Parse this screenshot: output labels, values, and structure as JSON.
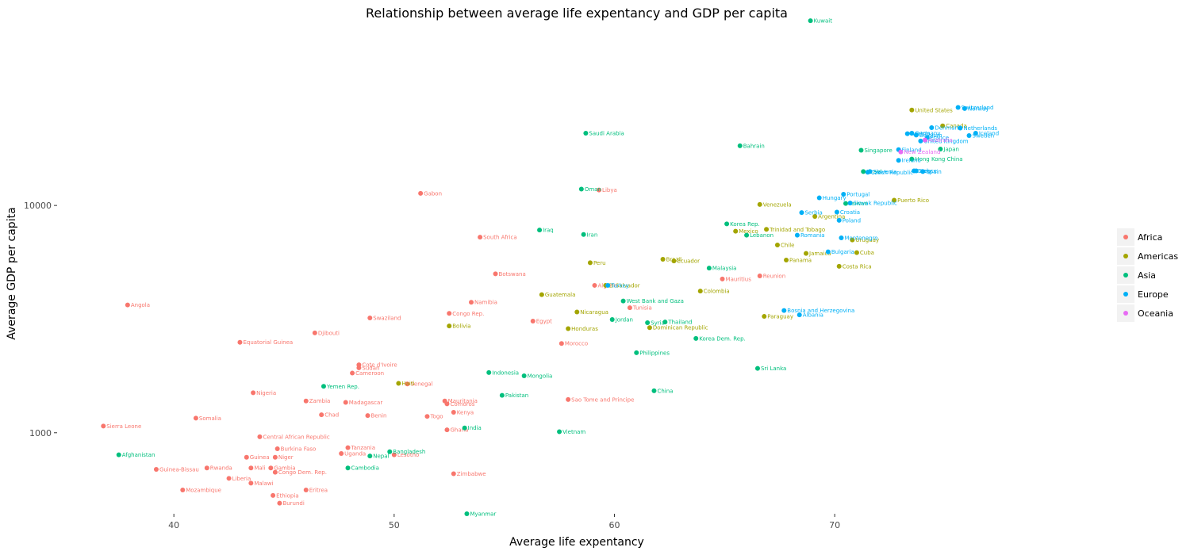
{
  "chart_data": {
    "type": "scatter",
    "title": "Relationship between average life expentancy and GDP per capita",
    "xlabel": "Average life expentancy",
    "ylabel": "Average GDP per capita",
    "xlim": [
      34.7,
      82.6
    ],
    "ylim": [
      440,
      62000
    ],
    "y_scale": "log",
    "x_ticks": [
      40,
      50,
      60,
      70
    ],
    "y_ticks": [
      1000,
      10000
    ],
    "x_tick_labels": [
      "40",
      "50",
      "60",
      "70"
    ],
    "y_tick_labels": [
      "1000",
      "10000"
    ],
    "grid": false,
    "legend_position": "right",
    "series": [
      {
        "name": "Africa",
        "color": "#F8766D",
        "points": [
          {
            "label": "Angola",
            "x": 37.9,
            "y": 3650
          },
          {
            "label": "Sierra Leone",
            "x": 36.8,
            "y": 1070
          },
          {
            "label": "Somalia",
            "x": 41.0,
            "y": 1160
          },
          {
            "label": "Equatorial Guinea",
            "x": 43.0,
            "y": 2500
          },
          {
            "label": "Nigeria",
            "x": 43.6,
            "y": 1500
          },
          {
            "label": "Guinea-Bissau",
            "x": 39.2,
            "y": 690
          },
          {
            "label": "Mozambique",
            "x": 40.4,
            "y": 560
          },
          {
            "label": "Rwanda",
            "x": 41.5,
            "y": 700
          },
          {
            "label": "Liberia",
            "x": 42.5,
            "y": 630
          },
          {
            "label": "Guinea",
            "x": 43.3,
            "y": 780
          },
          {
            "label": "Mali",
            "x": 43.5,
            "y": 700
          },
          {
            "label": "Malawi",
            "x": 43.5,
            "y": 600
          },
          {
            "label": "Central African Republic",
            "x": 43.9,
            "y": 960
          },
          {
            "label": "Burkina Faso",
            "x": 44.7,
            "y": 850
          },
          {
            "label": "Niger",
            "x": 44.6,
            "y": 780
          },
          {
            "label": "Gambia",
            "x": 44.4,
            "y": 700
          },
          {
            "label": "Congo Dem. Rep.",
            "x": 44.6,
            "y": 670
          },
          {
            "label": "Ethiopia",
            "x": 44.5,
            "y": 530
          },
          {
            "label": "Burundi",
            "x": 44.8,
            "y": 490
          },
          {
            "label": "Eritrea",
            "x": 46.0,
            "y": 560
          },
          {
            "label": "Zambia",
            "x": 46.0,
            "y": 1380
          },
          {
            "label": "Djibouti",
            "x": 46.4,
            "y": 2750
          },
          {
            "label": "Chad",
            "x": 46.7,
            "y": 1200
          },
          {
            "label": "Madagascar",
            "x": 47.8,
            "y": 1360
          },
          {
            "label": "Tanzania",
            "x": 47.9,
            "y": 860
          },
          {
            "label": "Uganda",
            "x": 47.6,
            "y": 810
          },
          {
            "label": "Cote d'Ivoire",
            "x": 48.4,
            "y": 1990
          },
          {
            "label": "Sudan",
            "x": 48.4,
            "y": 1930
          },
          {
            "label": "Cameroon",
            "x": 48.1,
            "y": 1830
          },
          {
            "label": "Swaziland",
            "x": 48.9,
            "y": 3200
          },
          {
            "label": "Benin",
            "x": 48.8,
            "y": 1190
          },
          {
            "label": "Lesotho",
            "x": 50.0,
            "y": 800
          },
          {
            "label": "Senegal",
            "x": 50.6,
            "y": 1640
          },
          {
            "label": "Gabon",
            "x": 51.2,
            "y": 11300
          },
          {
            "label": "Togo",
            "x": 51.5,
            "y": 1180
          },
          {
            "label": "Mauritania",
            "x": 52.3,
            "y": 1380
          },
          {
            "label": "Comoros",
            "x": 52.4,
            "y": 1340
          },
          {
            "label": "Ghana",
            "x": 52.4,
            "y": 1030
          },
          {
            "label": "Kenya",
            "x": 52.7,
            "y": 1230
          },
          {
            "label": "Congo Rep.",
            "x": 52.5,
            "y": 3350
          },
          {
            "label": "Zimbabwe",
            "x": 52.7,
            "y": 660
          },
          {
            "label": "Namibia",
            "x": 53.5,
            "y": 3750
          },
          {
            "label": "South Africa",
            "x": 53.9,
            "y": 7250
          },
          {
            "label": "Botswana",
            "x": 54.6,
            "y": 5000
          },
          {
            "label": "Egypt",
            "x": 56.3,
            "y": 3100
          },
          {
            "label": "Morocco",
            "x": 57.6,
            "y": 2470
          },
          {
            "label": "Sao Tome and Principe",
            "x": 57.9,
            "y": 1400
          },
          {
            "label": "Libya",
            "x": 59.3,
            "y": 11700
          },
          {
            "label": "Algeria",
            "x": 59.1,
            "y": 4450
          },
          {
            "label": "Tunisia",
            "x": 60.7,
            "y": 3550
          },
          {
            "label": "Mauritius",
            "x": 64.9,
            "y": 4750
          },
          {
            "label": "Reunion",
            "x": 66.6,
            "y": 4900
          }
        ]
      },
      {
        "name": "Americas",
        "color": "#A3A500",
        "points": [
          {
            "label": "Haiti",
            "x": 50.2,
            "y": 1650
          },
          {
            "label": "Bolivia",
            "x": 52.5,
            "y": 2950
          },
          {
            "label": "Guatemala",
            "x": 56.7,
            "y": 4050
          },
          {
            "label": "Nicaragua",
            "x": 58.3,
            "y": 3400
          },
          {
            "label": "Honduras",
            "x": 57.9,
            "y": 2870
          },
          {
            "label": "Peru",
            "x": 58.9,
            "y": 5600
          },
          {
            "label": "El Salvador",
            "x": 59.6,
            "y": 4450
          },
          {
            "label": "Dominican Republic",
            "x": 61.6,
            "y": 2900
          },
          {
            "label": "Brazil",
            "x": 62.2,
            "y": 5800
          },
          {
            "label": "Ecuador",
            "x": 62.7,
            "y": 5700
          },
          {
            "label": "Colombia",
            "x": 63.9,
            "y": 4200
          },
          {
            "label": "Venezuela",
            "x": 66.6,
            "y": 10100
          },
          {
            "label": "Mexico",
            "x": 65.5,
            "y": 7700
          },
          {
            "label": "Trinidad and Tobago",
            "x": 66.9,
            "y": 7850
          },
          {
            "label": "Paraguay",
            "x": 66.8,
            "y": 3250
          },
          {
            "label": "Chile",
            "x": 67.4,
            "y": 6700
          },
          {
            "label": "Panama",
            "x": 67.8,
            "y": 5750
          },
          {
            "label": "Jamaica",
            "x": 68.7,
            "y": 6150
          },
          {
            "label": "Argentina",
            "x": 69.1,
            "y": 8950
          },
          {
            "label": "Uruguay",
            "x": 70.8,
            "y": 7050
          },
          {
            "label": "Costa Rica",
            "x": 70.2,
            "y": 5400
          },
          {
            "label": "Cuba",
            "x": 71.0,
            "y": 6200
          },
          {
            "label": "Puerto Rico",
            "x": 72.7,
            "y": 10550
          },
          {
            "label": "United States",
            "x": 73.5,
            "y": 26300
          },
          {
            "label": "Canada",
            "x": 74.9,
            "y": 22400
          }
        ]
      },
      {
        "name": "Asia",
        "color": "#00BF7D",
        "points": [
          {
            "label": "Afghanistan",
            "x": 37.5,
            "y": 800
          },
          {
            "label": "Yemen Rep.",
            "x": 46.8,
            "y": 1600
          },
          {
            "label": "Cambodia",
            "x": 47.9,
            "y": 700
          },
          {
            "label": "Nepal",
            "x": 48.9,
            "y": 790
          },
          {
            "label": "Bangladesh",
            "x": 49.8,
            "y": 825
          },
          {
            "label": "Myanmar",
            "x": 53.3,
            "y": 440
          },
          {
            "label": "India",
            "x": 53.2,
            "y": 1050
          },
          {
            "label": "Indonesia",
            "x": 54.3,
            "y": 1840
          },
          {
            "label": "Pakistan",
            "x": 54.9,
            "y": 1460
          },
          {
            "label": "Mongolia",
            "x": 55.9,
            "y": 1780
          },
          {
            "label": "Vietnam",
            "x": 57.5,
            "y": 1010
          },
          {
            "label": "Iraq",
            "x": 56.6,
            "y": 7800
          },
          {
            "label": "Iran",
            "x": 58.6,
            "y": 7450
          },
          {
            "label": "Oman",
            "x": 58.5,
            "y": 11800
          },
          {
            "label": "Saudi Arabia",
            "x": 58.7,
            "y": 20800
          },
          {
            "label": "Jordan",
            "x": 59.9,
            "y": 3150
          },
          {
            "label": "West Bank and Gaza",
            "x": 60.4,
            "y": 3800
          },
          {
            "label": "Philippines",
            "x": 61.0,
            "y": 2250
          },
          {
            "label": "Syria",
            "x": 61.5,
            "y": 3050
          },
          {
            "label": "China",
            "x": 61.8,
            "y": 1530
          },
          {
            "label": "Thailand",
            "x": 62.3,
            "y": 3070
          },
          {
            "label": "Korea Dem. Rep.",
            "x": 63.7,
            "y": 2600
          },
          {
            "label": "Malaysia",
            "x": 64.3,
            "y": 5300
          },
          {
            "label": "Korea Rep.",
            "x": 65.1,
            "y": 8300
          },
          {
            "label": "Lebanon",
            "x": 66.0,
            "y": 7400
          },
          {
            "label": "Bahrain",
            "x": 65.7,
            "y": 18300
          },
          {
            "label": "Sri Lanka",
            "x": 66.5,
            "y": 1920
          },
          {
            "label": "Kuwait",
            "x": 68.9,
            "y": 65000
          },
          {
            "label": "Israel",
            "x": 71.3,
            "y": 14100
          },
          {
            "label": "Singapore",
            "x": 71.2,
            "y": 17500
          },
          {
            "label": "Taiwan",
            "x": 70.5,
            "y": 10200
          },
          {
            "label": "Hong Kong China",
            "x": 73.5,
            "y": 16000
          },
          {
            "label": "Japan",
            "x": 74.8,
            "y": 17700
          }
        ]
      },
      {
        "name": "Europe",
        "color": "#00B0F6",
        "points": [
          {
            "label": "Turkey",
            "x": 59.7,
            "y": 4450
          },
          {
            "label": "Bosnia and Herzegovina",
            "x": 67.7,
            "y": 3450
          },
          {
            "label": "Albania",
            "x": 68.4,
            "y": 3300
          },
          {
            "label": "Serbia",
            "x": 68.5,
            "y": 9300
          },
          {
            "label": "Romania",
            "x": 68.3,
            "y": 7400
          },
          {
            "label": "Bulgaria",
            "x": 69.7,
            "y": 6250
          },
          {
            "label": "Poland",
            "x": 70.2,
            "y": 8600
          },
          {
            "label": "Montenegro",
            "x": 70.3,
            "y": 7200
          },
          {
            "label": "Croatia",
            "x": 70.1,
            "y": 9350
          },
          {
            "label": "Hungary",
            "x": 69.3,
            "y": 10800
          },
          {
            "label": "Portugal",
            "x": 70.4,
            "y": 11200
          },
          {
            "label": "Slovak Republic",
            "x": 70.7,
            "y": 10250
          },
          {
            "label": "Czech Republic",
            "x": 71.5,
            "y": 14000
          },
          {
            "label": "Slovenia",
            "x": 71.6,
            "y": 14100
          },
          {
            "label": "Ireland",
            "x": 72.9,
            "y": 15800
          },
          {
            "label": "Finland",
            "x": 72.9,
            "y": 17600
          },
          {
            "label": "Greece",
            "x": 73.6,
            "y": 14200
          },
          {
            "label": "Spain",
            "x": 74.0,
            "y": 14100
          },
          {
            "label": "Italy",
            "x": 73.7,
            "y": 14200
          },
          {
            "label": "Austria",
            "x": 73.3,
            "y": 20700
          },
          {
            "label": "Germany",
            "x": 73.5,
            "y": 20800
          },
          {
            "label": "Belgium",
            "x": 73.7,
            "y": 20400
          },
          {
            "label": "United Kingdom",
            "x": 73.9,
            "y": 19200
          },
          {
            "label": "France",
            "x": 74.2,
            "y": 19900
          },
          {
            "label": "Denmark",
            "x": 74.4,
            "y": 22000
          },
          {
            "label": "Netherlands",
            "x": 75.7,
            "y": 21900
          },
          {
            "label": "Switzerland",
            "x": 75.6,
            "y": 27000
          },
          {
            "label": "Norway",
            "x": 75.9,
            "y": 26700
          },
          {
            "label": "Iceland",
            "x": 76.4,
            "y": 20800
          },
          {
            "label": "Sweden",
            "x": 76.1,
            "y": 20300
          }
        ]
      },
      {
        "name": "Oceania",
        "color": "#E76BF3",
        "points": [
          {
            "label": "New Zealand",
            "x": 73.0,
            "y": 17200
          },
          {
            "label": "Australia",
            "x": 74.1,
            "y": 19400
          }
        ]
      }
    ]
  }
}
